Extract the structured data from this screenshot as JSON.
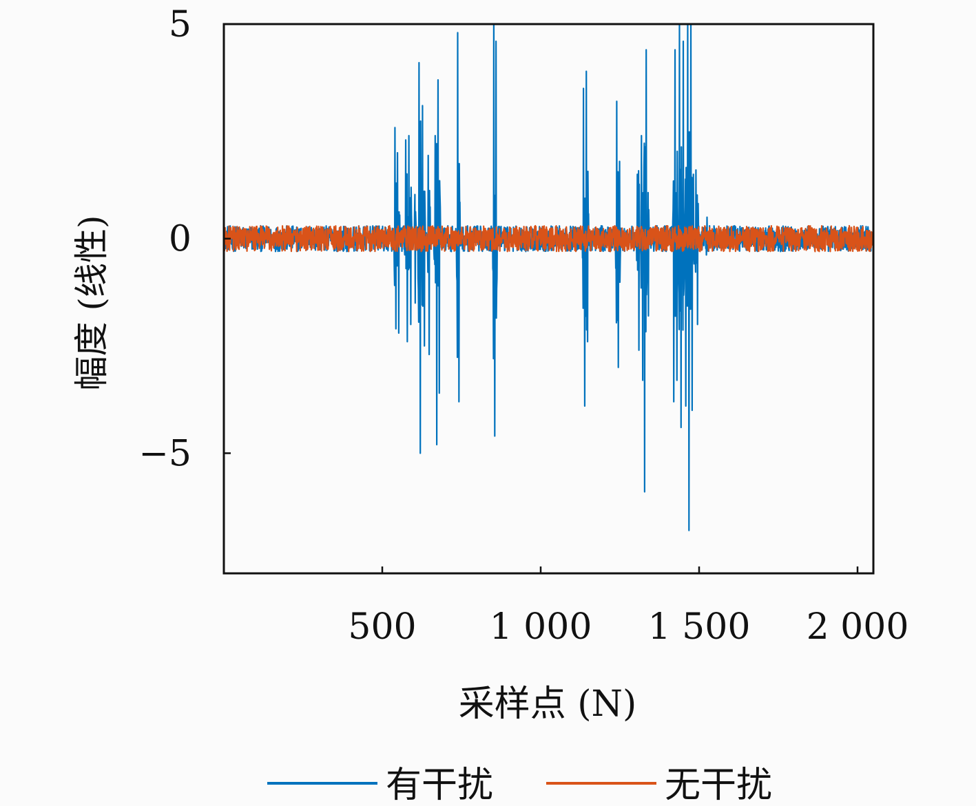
{
  "chart_data": {
    "type": "line",
    "title": "",
    "xlabel": "采样点 (N)",
    "ylabel": "幅度 (线性)",
    "xlim": [
      0,
      2050
    ],
    "ylim": [
      -7.8,
      5
    ],
    "x_ticks": [
      500,
      1000,
      1500,
      2000
    ],
    "x_tick_labels": [
      "500",
      "1 000",
      "1 500",
      "2 000"
    ],
    "y_ticks": [
      5,
      0,
      -5
    ],
    "y_tick_labels": [
      "5",
      "0",
      "−5"
    ],
    "grid": false,
    "legend_position": "bottom",
    "series": [
      {
        "name": "有干扰",
        "color": "#0072BD",
        "noise_amplitude": 0.3,
        "n_points": 2050,
        "interference_bursts": [
          {
            "x": 540,
            "y": 2.3
          },
          {
            "x": 543,
            "y": -2.1
          },
          {
            "x": 548,
            "y": 2.0
          },
          {
            "x": 552,
            "y": -2.2
          },
          {
            "x": 574,
            "y": 2.3
          },
          {
            "x": 579,
            "y": -2.4
          },
          {
            "x": 584,
            "y": 2.4
          },
          {
            "x": 590,
            "y": -2.0
          },
          {
            "x": 604,
            "y": -1.5
          },
          {
            "x": 616,
            "y": 4.1
          },
          {
            "x": 620,
            "y": -5.0
          },
          {
            "x": 627,
            "y": 3.1
          },
          {
            "x": 633,
            "y": -2.5
          },
          {
            "x": 645,
            "y": 1.5
          },
          {
            "x": 648,
            "y": -2.7
          },
          {
            "x": 667,
            "y": 2.4
          },
          {
            "x": 672,
            "y": -4.8
          },
          {
            "x": 676,
            "y": 3.7
          },
          {
            "x": 680,
            "y": -3.6
          },
          {
            "x": 738,
            "y": 4.8
          },
          {
            "x": 742,
            "y": -3.8
          },
          {
            "x": 852,
            "y": 5.0
          },
          {
            "x": 855,
            "y": -4.6
          },
          {
            "x": 859,
            "y": 4.6
          },
          {
            "x": 1135,
            "y": 3.5
          },
          {
            "x": 1139,
            "y": -3.9
          },
          {
            "x": 1144,
            "y": 3.9
          },
          {
            "x": 1148,
            "y": -2.4
          },
          {
            "x": 1240,
            "y": 3.2
          },
          {
            "x": 1245,
            "y": -3.0
          },
          {
            "x": 1249,
            "y": 1.8
          },
          {
            "x": 1305,
            "y": 1.5
          },
          {
            "x": 1310,
            "y": -2.6
          },
          {
            "x": 1318,
            "y": 2.4
          },
          {
            "x": 1322,
            "y": -3.3
          },
          {
            "x": 1328,
            "y": -5.9
          },
          {
            "x": 1333,
            "y": 4.4
          },
          {
            "x": 1340,
            "y": -1.8
          },
          {
            "x": 1420,
            "y": -3.8
          },
          {
            "x": 1424,
            "y": 4.4
          },
          {
            "x": 1430,
            "y": -3.3
          },
          {
            "x": 1438,
            "y": 5.0
          },
          {
            "x": 1443,
            "y": -4.4
          },
          {
            "x": 1450,
            "y": 4.6
          },
          {
            "x": 1458,
            "y": -3.9
          },
          {
            "x": 1464,
            "y": 5.0
          },
          {
            "x": 1468,
            "y": -6.8
          },
          {
            "x": 1474,
            "y": 5.0
          },
          {
            "x": 1478,
            "y": -4.0
          },
          {
            "x": 1482,
            "y": 1.5
          },
          {
            "x": 1490,
            "y": 1.6
          },
          {
            "x": 1495,
            "y": -2.0
          },
          {
            "x": 1525,
            "y": 0.5
          }
        ]
      },
      {
        "name": "无干扰",
        "color": "#D95319",
        "noise_amplitude": 0.3,
        "n_points": 2050
      }
    ]
  }
}
